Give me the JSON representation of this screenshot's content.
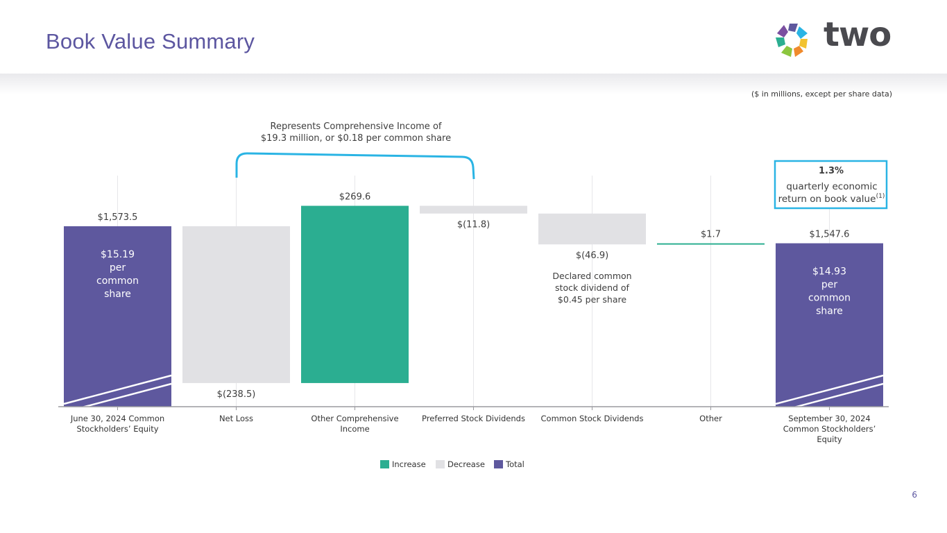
{
  "page": {
    "title": "Book Value Summary",
    "units_note": "($ in millions, except per share data)",
    "page_number": "6",
    "logo_text": "two"
  },
  "chart_data": {
    "type": "waterfall",
    "categories": [
      [
        "June 30, 2024 Common",
        "Stockholders’ Equity"
      ],
      [
        "Net Loss"
      ],
      [
        "Other Comprehensive",
        "Income"
      ],
      [
        "Preferred Stock Dividends"
      ],
      [
        "Common Stock Dividends"
      ],
      [
        "Other"
      ],
      [
        "September 30, 2024",
        "Common Stockholders’",
        "Equity"
      ]
    ],
    "values": [
      1573.5,
      -238.5,
      269.6,
      -11.8,
      -46.9,
      1.7,
      1547.6
    ],
    "kinds": [
      "total",
      "decrease",
      "increase",
      "decrease",
      "decrease",
      "increase",
      "total"
    ],
    "value_labels": [
      "$1,573.5",
      "$(238.5)",
      "$269.6",
      "$(11.8)",
      "$(46.9)",
      "$1.7",
      "$1,547.6"
    ],
    "per_share": [
      [
        "$15.19",
        "per",
        "common",
        "share"
      ],
      null,
      null,
      null,
      null,
      null,
      [
        "$14.93",
        "per",
        "common",
        "share"
      ]
    ],
    "legend": [
      {
        "label": "Increase",
        "color": "#2bae91"
      },
      {
        "label": "Decrease",
        "color": "#e1e1e4"
      },
      {
        "label": "Total",
        "color": "#5e589e"
      }
    ],
    "annotations": {
      "comprehensive_income": [
        "Represents Comprehensive Income of",
        "$19.3 million, or $0.18 per common share"
      ],
      "dividend_note": [
        "Declared common",
        "stock dividend of",
        "$0.45 per share"
      ],
      "economic_return_value": "1.3%",
      "economic_return_text": [
        "quarterly economic",
        "return on book value"
      ],
      "economic_return_footnote": "(1)"
    }
  },
  "colors": {
    "increase": "#2bae91",
    "decrease": "#e1e1e4",
    "total": "#5e589e",
    "accent": "#2ab4e4",
    "title": "#5c56a0"
  }
}
